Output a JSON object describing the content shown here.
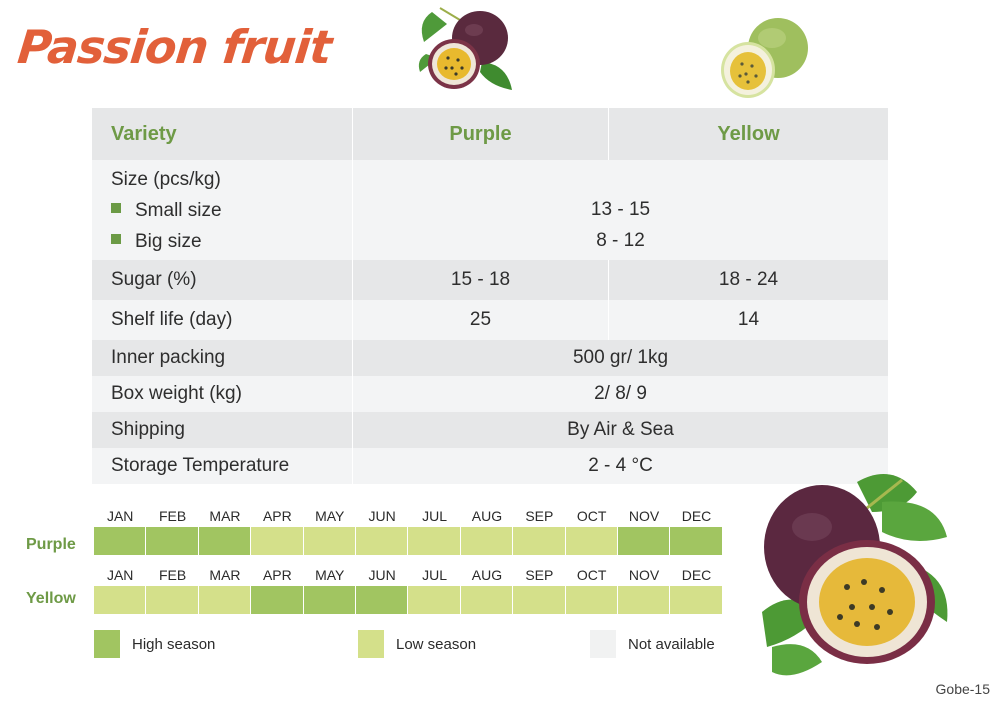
{
  "title": "Passion fruit",
  "colors": {
    "title": "#e2603a",
    "accent_green": "#6e9a46",
    "high_season": "#a1c561",
    "low_season": "#d4e08a",
    "not_available": "#f1f2f2",
    "row_dark": "#e6e7e8",
    "row_light": "#f3f4f5"
  },
  "table": {
    "header": {
      "label": "Variety",
      "purple": "Purple",
      "yellow": "Yellow"
    },
    "size": {
      "label": "Size (pcs/kg)",
      "small_label": "Small size",
      "small_value": "13 - 15",
      "big_label": "Big size",
      "big_value": "8 - 12"
    },
    "sugar": {
      "label": "Sugar (%)",
      "purple": "15 - 18",
      "yellow": "18 - 24"
    },
    "shelf_life": {
      "label": "Shelf life (day)",
      "purple": "25",
      "yellow": "14"
    },
    "inner_packing": {
      "label": "Inner packing",
      "value": "500 gr/ 1kg"
    },
    "box_weight": {
      "label": "Box weight (kg)",
      "value": "2/ 8/ 9"
    },
    "shipping": {
      "label": "Shipping",
      "value": "By Air & Sea"
    },
    "storage": {
      "label": "Storage Temperature",
      "value": "2 - 4 °C"
    }
  },
  "calendar": {
    "months": [
      "JAN",
      "FEB",
      "MAR",
      "APR",
      "MAY",
      "JUN",
      "JUL",
      "AUG",
      "SEP",
      "OCT",
      "NOV",
      "DEC"
    ],
    "purple": {
      "label": "Purple",
      "seasons": [
        "high",
        "high",
        "high",
        "low",
        "low",
        "low",
        "low",
        "low",
        "low",
        "low",
        "high",
        "high"
      ]
    },
    "yellow": {
      "label": "Yellow",
      "seasons": [
        "low",
        "low",
        "low",
        "high",
        "high",
        "high",
        "low",
        "low",
        "low",
        "low",
        "low",
        "low"
      ]
    }
  },
  "legend": {
    "high": "High season",
    "low": "Low season",
    "na": "Not available"
  },
  "footer": "Gobe-15"
}
